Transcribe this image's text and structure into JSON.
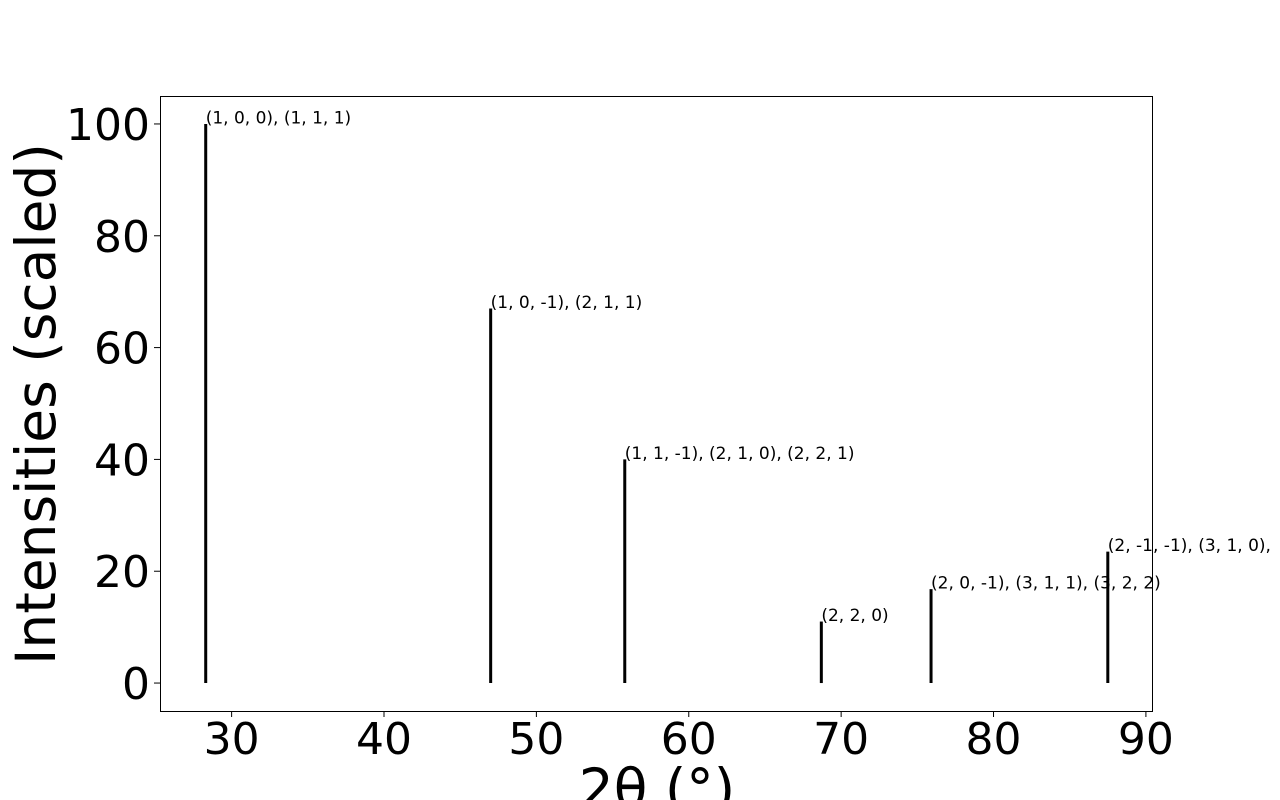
{
  "chart_data": {
    "type": "bar",
    "xlabel": "2θ (°)",
    "ylabel": "Intensities (scaled)",
    "xlim": [
      25.3,
      90.4
    ],
    "ylim": [
      -5,
      105
    ],
    "xticks": [
      30,
      40,
      50,
      60,
      70,
      80,
      90
    ],
    "yticks": [
      0,
      20,
      40,
      60,
      80,
      100
    ],
    "grid": false,
    "peaks": [
      {
        "x": 28.3,
        "y": 100,
        "label": "(1, 0, 0), (1, 1, 1)"
      },
      {
        "x": 47.0,
        "y": 67,
        "label": "(1, 0, -1), (2, 1, 1)"
      },
      {
        "x": 55.8,
        "y": 40,
        "label": "(1, 1, -1), (2, 1, 0), (2, 2, 1)"
      },
      {
        "x": 68.7,
        "y": 11,
        "label": "(2, 2, 0)"
      },
      {
        "x": 75.9,
        "y": 16.8,
        "label": "(2, 0, -1), (3, 1, 1), (3, 2, 2)"
      },
      {
        "x": 87.5,
        "y": 23.5,
        "label": "(2, -1, -1), (3, 1, 0),"
      }
    ]
  }
}
